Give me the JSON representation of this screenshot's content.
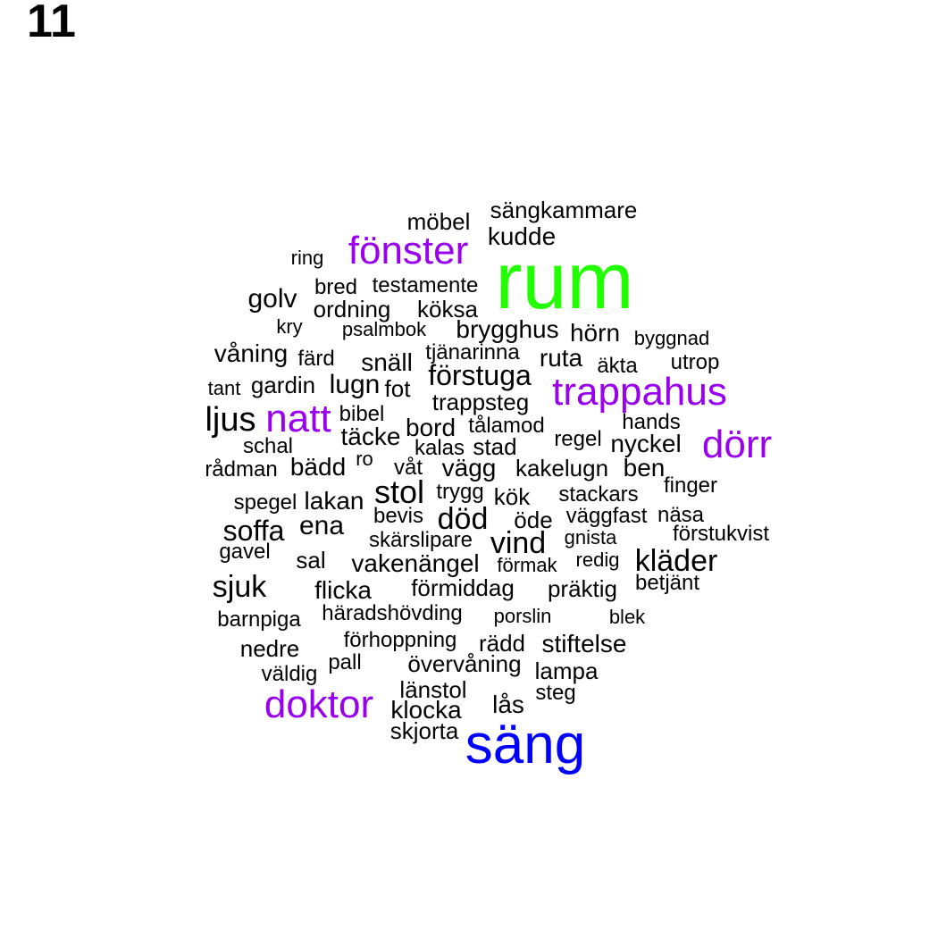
{
  "panel_number": "11",
  "colors": {
    "default": "#000000",
    "purple": "#9900ee",
    "green": "#22ff00",
    "blue": "#0000ff"
  },
  "words": [
    {
      "text": "rum",
      "color": "green",
      "weight": 9
    },
    {
      "text": "säng",
      "color": "blue",
      "weight": 7
    },
    {
      "text": "fönster",
      "color": "purple",
      "weight": 5
    },
    {
      "text": "trappahus",
      "color": "purple",
      "weight": 5
    },
    {
      "text": "natt",
      "color": "purple",
      "weight": 5
    },
    {
      "text": "dörr",
      "color": "purple",
      "weight": 5
    },
    {
      "text": "doktor",
      "color": "purple",
      "weight": 5
    },
    {
      "text": "sängkammare",
      "weight": 2
    },
    {
      "text": "möbel",
      "weight": 2.5
    },
    {
      "text": "kudde",
      "weight": 2.5
    },
    {
      "text": "ring",
      "weight": 2
    },
    {
      "text": "bred",
      "weight": 2
    },
    {
      "text": "testamente",
      "weight": 2
    },
    {
      "text": "golv",
      "weight": 3
    },
    {
      "text": "ordning",
      "weight": 2
    },
    {
      "text": "köksa",
      "weight": 2
    },
    {
      "text": "kry",
      "weight": 2
    },
    {
      "text": "psalmbok",
      "weight": 2
    },
    {
      "text": "brygghus",
      "weight": 2.5
    },
    {
      "text": "hörn",
      "weight": 2.5
    },
    {
      "text": "byggnad",
      "weight": 2
    },
    {
      "text": "våning",
      "weight": 2.5
    },
    {
      "text": "färd",
      "weight": 2
    },
    {
      "text": "snäll",
      "weight": 2.5
    },
    {
      "text": "tjänarinna",
      "weight": 2
    },
    {
      "text": "ruta",
      "weight": 2.5
    },
    {
      "text": "äkta",
      "weight": 2
    },
    {
      "text": "utrop",
      "weight": 2
    },
    {
      "text": "förstuga",
      "weight": 3
    },
    {
      "text": "tant",
      "weight": 2
    },
    {
      "text": "gardin",
      "weight": 2
    },
    {
      "text": "lugn",
      "weight": 3
    },
    {
      "text": "fot",
      "weight": 2
    },
    {
      "text": "trappsteg",
      "weight": 2
    },
    {
      "text": "ljus",
      "weight": 3.5
    },
    {
      "text": "bibel",
      "weight": 2
    },
    {
      "text": "hands",
      "weight": 2
    },
    {
      "text": "bord",
      "weight": 2.5
    },
    {
      "text": "tålamod",
      "weight": 2
    },
    {
      "text": "täcke",
      "weight": 2.5
    },
    {
      "text": "regel",
      "weight": 2
    },
    {
      "text": "nyckel",
      "weight": 2.5
    },
    {
      "text": "schal",
      "weight": 2
    },
    {
      "text": "kalas",
      "weight": 2
    },
    {
      "text": "stad",
      "weight": 2
    },
    {
      "text": "rådman",
      "weight": 2
    },
    {
      "text": "bädd",
      "weight": 2.5
    },
    {
      "text": "ro",
      "weight": 2
    },
    {
      "text": "våt",
      "weight": 2
    },
    {
      "text": "vägg",
      "weight": 2.5
    },
    {
      "text": "kakelugn",
      "weight": 2
    },
    {
      "text": "ben",
      "weight": 2.5
    },
    {
      "text": "stol",
      "weight": 4
    },
    {
      "text": "trygg",
      "weight": 2
    },
    {
      "text": "finger",
      "weight": 2
    },
    {
      "text": "spegel",
      "weight": 2
    },
    {
      "text": "lakan",
      "weight": 2.5
    },
    {
      "text": "kök",
      "weight": 2
    },
    {
      "text": "stackars",
      "weight": 2
    },
    {
      "text": "bevis",
      "weight": 2
    },
    {
      "text": "död",
      "weight": 3.5
    },
    {
      "text": "öde",
      "weight": 2
    },
    {
      "text": "väggfast",
      "weight": 2
    },
    {
      "text": "näsa",
      "weight": 2
    },
    {
      "text": "soffa",
      "weight": 3
    },
    {
      "text": "ena",
      "weight": 3
    },
    {
      "text": "skärslipare",
      "weight": 2
    },
    {
      "text": "vind",
      "weight": 3.5
    },
    {
      "text": "gnista",
      "weight": 2
    },
    {
      "text": "förstukvist",
      "weight": 2
    },
    {
      "text": "gavel",
      "weight": 2
    },
    {
      "text": "sal",
      "weight": 2.5
    },
    {
      "text": "vakenängel",
      "weight": 2.5
    },
    {
      "text": "förmak",
      "weight": 2
    },
    {
      "text": "redig",
      "weight": 2
    },
    {
      "text": "kläder",
      "weight": 3.5
    },
    {
      "text": "sjuk",
      "weight": 3.5
    },
    {
      "text": "flicka",
      "weight": 2.5
    },
    {
      "text": "förmiddag",
      "weight": 2.5
    },
    {
      "text": "präktig",
      "weight": 2.5
    },
    {
      "text": "betjänt",
      "weight": 2
    },
    {
      "text": "barnpiga",
      "weight": 2
    },
    {
      "text": "häradshövding",
      "weight": 2
    },
    {
      "text": "porslin",
      "weight": 2
    },
    {
      "text": "blek",
      "weight": 2
    },
    {
      "text": "förhoppning",
      "weight": 2
    },
    {
      "text": "rädd",
      "weight": 2.5
    },
    {
      "text": "stiftelse",
      "weight": 3
    },
    {
      "text": "nedre",
      "weight": 2.5
    },
    {
      "text": "pall",
      "weight": 2
    },
    {
      "text": "övervåning",
      "weight": 2.5
    },
    {
      "text": "lampa",
      "weight": 2.5
    },
    {
      "text": "väldig",
      "weight": 2
    },
    {
      "text": "länstol",
      "weight": 2.5
    },
    {
      "text": "steg",
      "weight": 2
    },
    {
      "text": "klocka",
      "weight": 2.5
    },
    {
      "text": "lås",
      "weight": 2.5
    },
    {
      "text": "skjorta",
      "weight": 2.5
    }
  ]
}
